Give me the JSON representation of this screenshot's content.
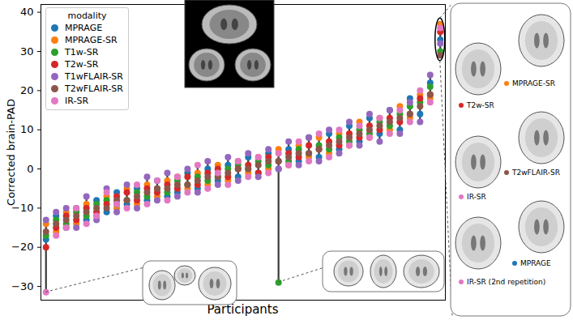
{
  "chart_data": {
    "type": "scatter",
    "xlabel": "Participants",
    "ylabel": "Corrected brain-PAD",
    "x": [
      1,
      2,
      3,
      4,
      5,
      6,
      7,
      8,
      9,
      10,
      11,
      12,
      13,
      14,
      15,
      16,
      17,
      18,
      19,
      20,
      21,
      22,
      23,
      24,
      25,
      26,
      27,
      28,
      29,
      30,
      31,
      32,
      33,
      34,
      35,
      36,
      37,
      38,
      39,
      40
    ],
    "xlim": [
      0.5,
      40.5
    ],
    "ylim": [
      -33.5,
      42
    ],
    "yticks": [
      -30,
      -20,
      -10,
      0,
      10,
      20,
      30,
      40
    ],
    "tick_labels": "y",
    "legend": "upper left",
    "legend_title": "modality",
    "series": [
      {
        "name": "MPRAGE",
        "color": "#1f77b4",
        "values": [
          -18,
          -12,
          -15,
          -10,
          -13,
          -8,
          -11,
          -6,
          -9,
          -5,
          -8,
          -3,
          -7,
          -6,
          -1,
          -5,
          0,
          -3,
          1,
          -2,
          3,
          -1,
          4,
          0,
          5,
          2,
          8,
          3,
          9,
          5,
          11,
          7,
          13,
          9,
          15,
          10,
          18,
          14,
          22,
          33
        ]
      },
      {
        "name": "MPRAGE-SR",
        "color": "#ff7f0e",
        "values": [
          -14,
          -16,
          -11,
          -14,
          -9,
          -12,
          -7,
          -10,
          -5,
          -9,
          -4,
          -7,
          -3,
          -2,
          -5,
          -1,
          -4,
          1,
          -3,
          2,
          -1,
          3,
          0,
          5,
          1,
          6,
          3,
          8,
          4,
          9,
          6,
          12,
          8,
          13,
          10,
          16,
          13,
          19,
          18,
          37
        ]
      },
      {
        "name": "T1w-SR",
        "color": "#2ca02c",
        "values": [
          -17,
          -13,
          -14,
          -11,
          -12,
          -9,
          -8,
          -9,
          -8,
          -6,
          -7,
          -5,
          -6,
          -3,
          -4,
          -2,
          -3,
          -2,
          0,
          1,
          0,
          2,
          1,
          -29,
          2,
          5,
          4,
          6,
          5,
          8,
          7,
          10,
          9,
          12,
          11,
          14,
          16,
          17,
          21,
          30
        ]
      },
      {
        "name": "T2w-SR",
        "color": "#d62728",
        "values": [
          -20,
          -15,
          -12,
          -13,
          -10,
          -11,
          -9,
          -7,
          -6,
          -8,
          -5,
          -6,
          -4,
          -5,
          -2,
          -4,
          -1,
          0,
          -2,
          0,
          1,
          -1,
          3,
          2,
          4,
          3,
          6,
          5,
          7,
          6,
          9,
          8,
          11,
          10,
          13,
          12,
          14,
          18,
          19,
          35
        ]
      },
      {
        "name": "T1wFLAIR-SR",
        "color": "#9467bd",
        "values": [
          -13,
          -11,
          -10,
          -15,
          -7,
          -13,
          -5,
          -11,
          -4,
          -10,
          -2,
          -8,
          -1,
          -7,
          0,
          -6,
          2,
          -4,
          3,
          -3,
          4,
          -2,
          5,
          0,
          7,
          1,
          8,
          2,
          10,
          4,
          12,
          6,
          14,
          7,
          15,
          9,
          17,
          12,
          24,
          32
        ]
      },
      {
        "name": "T2wFLAIR-SR",
        "color": "#8c564b",
        "values": [
          -16,
          -14,
          -13,
          -12,
          -11,
          -10,
          -10,
          -8,
          -8,
          -7,
          -6,
          -5,
          -5,
          -4,
          -4,
          -3,
          -2,
          -2,
          -1,
          0,
          0,
          1,
          2,
          2,
          3,
          4,
          4,
          5,
          6,
          7,
          8,
          9,
          10,
          11,
          12,
          13,
          14,
          16,
          19,
          29
        ]
      },
      {
        "name": "IR-SR",
        "color": "#e377c2",
        "values": [
          -31.5,
          -17,
          -15,
          -10,
          -14,
          -12,
          -6,
          -9,
          -10,
          -4,
          -9,
          -3,
          -8,
          -2,
          -6,
          1,
          -5,
          -1,
          -4,
          2,
          -2,
          3,
          -1,
          4,
          1,
          7,
          2,
          9,
          3,
          10,
          6,
          11,
          8,
          13,
          9,
          15,
          12,
          20,
          17,
          36
        ]
      }
    ],
    "inset_labels": [
      {
        "text": "T2w-SR",
        "modality": "T2w-SR"
      },
      {
        "text": "MPRAGE-SR",
        "modality": "MPRAGE-SR"
      },
      {
        "text": "IR-SR",
        "modality": "IR-SR"
      },
      {
        "text": "T2wFLAIR-SR",
        "modality": "T2wFLAIR-SR"
      },
      {
        "text": "IR-SR (2nd repetition)",
        "modality": "IR-SR"
      },
      {
        "text": "MPRAGE",
        "modality": "MPRAGE"
      }
    ]
  }
}
